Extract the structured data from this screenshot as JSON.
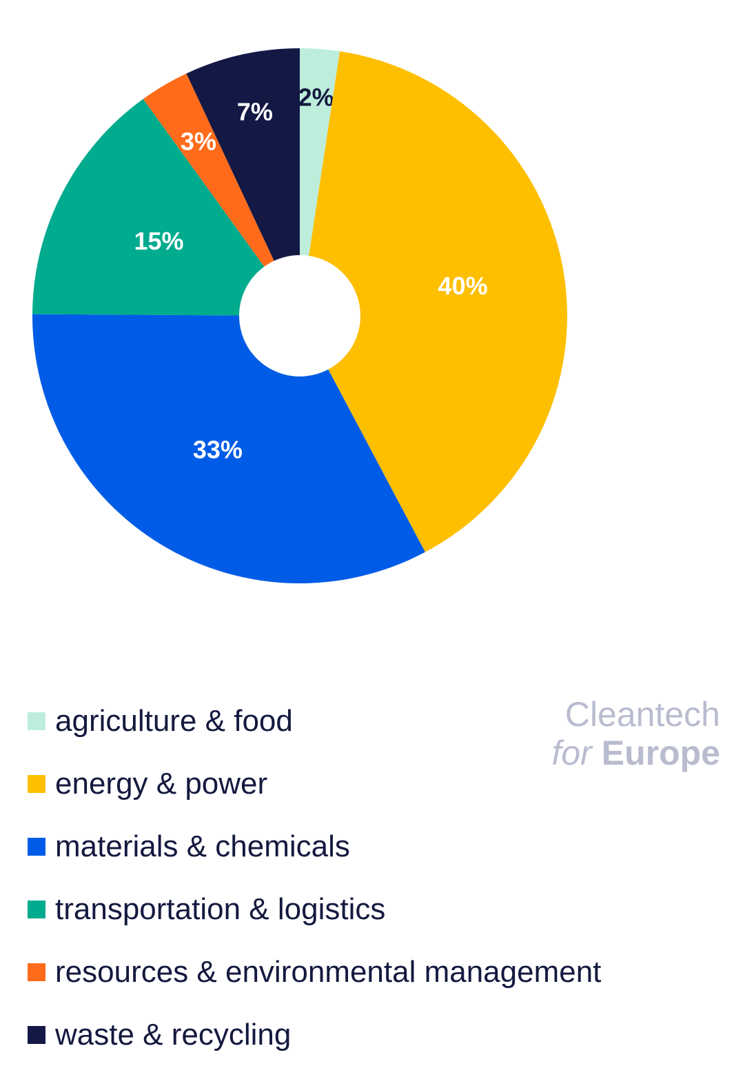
{
  "chart_data": {
    "type": "pie",
    "donut": true,
    "start_angle_deg": 0,
    "direction": "clockwise",
    "slices": [
      {
        "name": "agriculture & food",
        "value": 2.4,
        "label": "2%",
        "color": "#bdeedb",
        "label_color": "#14193f"
      },
      {
        "name": "energy & power",
        "value": 40,
        "label": "40%",
        "color": "#fdbf00",
        "label_color": "#ffffff"
      },
      {
        "name": "materials & chemicals",
        "value": 33,
        "label": "33%",
        "color": "#005ce6",
        "label_color": "#ffffff"
      },
      {
        "name": "transportation & logistics",
        "value": 15,
        "label": "15%",
        "color": "#00ab8e",
        "label_color": "#ffffff"
      },
      {
        "name": "resources & environmental management",
        "value": 3,
        "label": "3%",
        "color": "#ff6b1a",
        "label_color": "#ffffff"
      },
      {
        "name": "waste & recycling",
        "value": 7,
        "label": "7%",
        "color": "#131845",
        "label_color": "#ffffff"
      }
    ],
    "legend_placement": "bottom-left"
  },
  "legend": {
    "items": [
      {
        "label": "agriculture & food",
        "color": "#bdeedb"
      },
      {
        "label": "energy & power",
        "color": "#fdbf00"
      },
      {
        "label": "materials & chemicals",
        "color": "#005ce6"
      },
      {
        "label": "transportation & logistics",
        "color": "#00ab8e"
      },
      {
        "label": "resources & environmental management",
        "color": "#ff6b1a"
      },
      {
        "label": "waste & recycling",
        "color": "#131845"
      }
    ]
  },
  "logo": {
    "line1": "Cleantech",
    "line2_for": "for",
    "line2_europe": "Europe",
    "color": "#b9bccf"
  }
}
